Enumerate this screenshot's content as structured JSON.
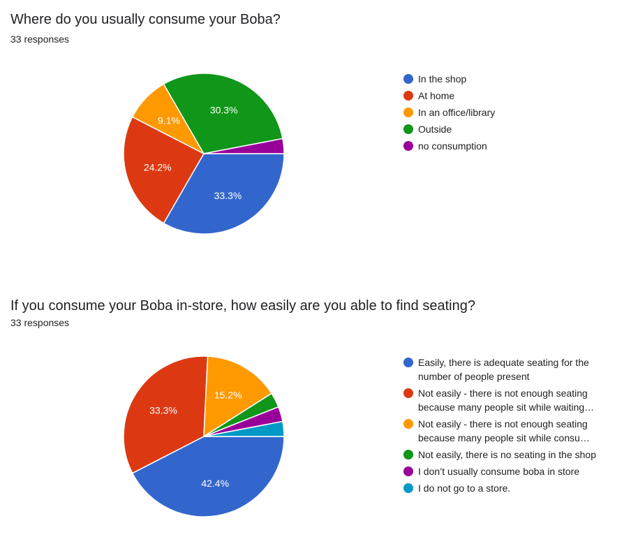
{
  "charts": [
    {
      "title": "Where do you usually consume your Boba?",
      "responses": "33 responses",
      "chart_data": {
        "type": "pie",
        "categories": [
          "In the shop",
          "At home",
          "In an office/library",
          "Outside",
          "no consumption"
        ],
        "values": [
          33.3,
          24.2,
          9.1,
          30.3,
          3.0
        ],
        "labels": [
          "33.3%",
          "24.2%",
          "9.1%",
          "30.3%",
          ""
        ],
        "colors": [
          "#3366cc",
          "#dc3912",
          "#ff9900",
          "#109618",
          "#990099"
        ],
        "legend": "right"
      }
    },
    {
      "title": "If you consume your Boba in-store, how easily are you able to find seating?",
      "responses": "33 responses",
      "chart_data": {
        "type": "pie",
        "categories": [
          "Easily, there is adequate seating for the number of people present",
          "Not easily - there is not enough seating because many people sit while waiting…",
          "Not easily - there is not enough seating because many people sit while consu…",
          "Not easily, there is no seating in the shop",
          "I don’t usually consume boba in store",
          "I do not go to a store."
        ],
        "values": [
          42.4,
          33.3,
          15.2,
          3.0,
          3.0,
          3.0
        ],
        "labels": [
          "42.4%",
          "33.3%",
          "15.2%",
          "",
          "",
          ""
        ],
        "colors": [
          "#3366cc",
          "#dc3912",
          "#ff9900",
          "#109618",
          "#990099",
          "#0099c6"
        ],
        "legend": "right"
      }
    }
  ]
}
